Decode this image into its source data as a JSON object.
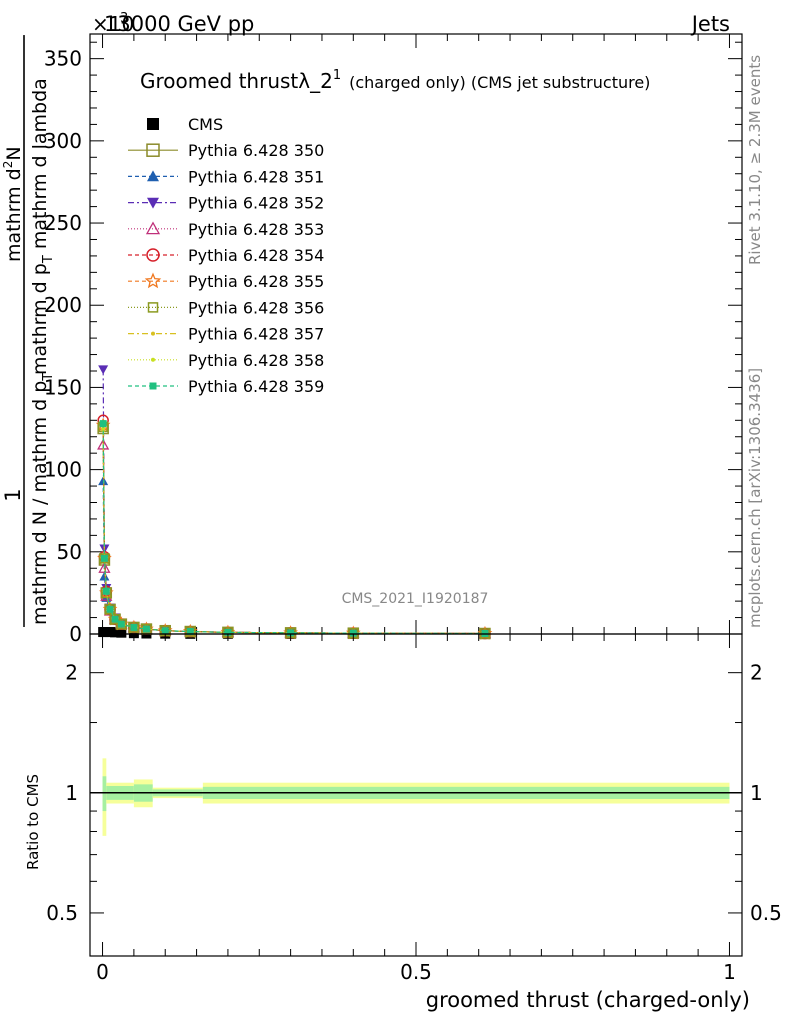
{
  "header": {
    "left": "13000 GeV pp",
    "right": "Jets",
    "multiplier": "×10",
    "multiplier_exp": "3"
  },
  "side_labels": {
    "rivet": "Rivet 3.1.10, ≥ 2.3M events",
    "mcplots": "mcplots.cern.ch [arXiv:1306.3436]"
  },
  "watermark": "CMS_2021_I1920187",
  "chart_data": [
    {
      "type": "line",
      "title": "Groomed thrustλ_2",
      "title_sup": "1",
      "title_suffix": "(charged only) (CMS jet substructure)",
      "ylabel_parts": [
        "1",
        "mathrm d N / mathrm d p",
        "T",
        "mathrm d N",
        "mathrm d p",
        "T",
        "mathrm d lambda"
      ],
      "ylabel_top": "mathrm d",
      "ylabel_top_sup": "2",
      "ylabel_top_end": "N",
      "ylabel_num": "1",
      "ylabel_den_left": "mathrm d N / mathrm d p",
      "ylabel_den_sub": "T",
      "ylabel_right_num": "mathrm d",
      "ylabel_right_num_sup": "2",
      "ylabel_right_num_end": "N",
      "ylabel_right_den": "mathrm d p",
      "ylabel_right_den_sub": "T",
      "ylabel_right_den_end": " mathrm d lambda",
      "xlim": [
        -0.02,
        1.02
      ],
      "ylim": [
        0,
        365
      ],
      "yticks": [
        0,
        50,
        100,
        150,
        200,
        250,
        300,
        350
      ],
      "ytick_labels": [
        "0",
        "50",
        "100",
        "150",
        "200",
        "250",
        "300",
        "350"
      ],
      "x": [
        0.001,
        0.003,
        0.006,
        0.012,
        0.02,
        0.03,
        0.05,
        0.07,
        0.1,
        0.14,
        0.2,
        0.3,
        0.4,
        0.61
      ],
      "series": [
        {
          "name": "CMS",
          "color": "#000000",
          "marker": "square-filled",
          "dash": "",
          "values": [
            1.2,
            1.2,
            1.2,
            1.2,
            1.0,
            0.8,
            0.5,
            0.3,
            0.2,
            0.1,
            0.1,
            0.05,
            0.03,
            0.01
          ]
        },
        {
          "name": "Pythia 6.428 350",
          "color": "#8b8b2a",
          "marker": "square-open",
          "dash": "",
          "values": [
            125,
            45,
            25,
            15,
            9,
            6,
            4,
            3,
            2,
            1.5,
            1,
            0.7,
            0.5,
            0.3
          ]
        },
        {
          "name": "Pythia 6.428 351",
          "color": "#1f5fb0",
          "marker": "triangle-filled",
          "dash": "4,3",
          "values": [
            93,
            35,
            22,
            14,
            9,
            6,
            4,
            3,
            2,
            1.5,
            1,
            0.7,
            0.5,
            0.3
          ]
        },
        {
          "name": "Pythia 6.428 352",
          "color": "#5a2db5",
          "marker": "triangle-down-filled",
          "dash": "6,3,2,3",
          "values": [
            161,
            52,
            28,
            16,
            10,
            6,
            4,
            3,
            2,
            1.5,
            1,
            0.7,
            0.5,
            0.3
          ]
        },
        {
          "name": "Pythia 6.428 353",
          "color": "#c0307a",
          "marker": "triangle-open",
          "dash": "1,2",
          "values": [
            115,
            40,
            23,
            14,
            9,
            6,
            4,
            3,
            2,
            1.5,
            1,
            0.7,
            0.5,
            0.3
          ]
        },
        {
          "name": "Pythia 6.428 354",
          "color": "#d6202a",
          "marker": "circle-open",
          "dash": "4,3",
          "values": [
            130,
            47,
            26,
            15,
            9,
            6,
            4,
            3,
            2,
            1.5,
            1,
            0.7,
            0.5,
            0.3
          ]
        },
        {
          "name": "Pythia 6.428 355",
          "color": "#f07820",
          "marker": "star-open",
          "dash": "4,3",
          "values": [
            127,
            46,
            25,
            15,
            9,
            6,
            4,
            3,
            2,
            1.5,
            1,
            0.7,
            0.5,
            0.3
          ]
        },
        {
          "name": "Pythia 6.428 356",
          "color": "#8b9a20",
          "marker": "square-open-small",
          "dash": "1,2",
          "values": [
            126,
            46,
            25,
            15,
            9,
            6,
            4,
            3,
            2,
            1.5,
            1,
            0.7,
            0.5,
            0.3
          ]
        },
        {
          "name": "Pythia 6.428 357",
          "color": "#d8c020",
          "marker": "dot",
          "dash": "6,3,2,3",
          "values": [
            124,
            45,
            25,
            15,
            9,
            6,
            4,
            3,
            2,
            1.5,
            1,
            0.7,
            0.5,
            0.3
          ]
        },
        {
          "name": "Pythia 6.428 358",
          "color": "#c8e020",
          "marker": "dot",
          "dash": "1,2",
          "values": [
            125,
            45,
            25,
            15,
            9,
            6,
            4,
            3,
            2,
            1.5,
            1,
            0.7,
            0.5,
            0.3
          ]
        },
        {
          "name": "Pythia 6.428 359",
          "color": "#20c080",
          "marker": "square-filled-small",
          "dash": "4,3",
          "values": [
            128,
            46,
            26,
            15,
            9,
            6,
            4,
            3,
            2,
            1.5,
            1,
            0.7,
            0.5,
            0.3
          ]
        }
      ]
    },
    {
      "type": "area",
      "ylabel": "Ratio to CMS",
      "xlabel": "groomed thrust (charged-only)",
      "xlim": [
        -0.02,
        1.02
      ],
      "ylim": [
        0.39,
        2.5
      ],
      "log_y": true,
      "yticks": [
        0.5,
        1,
        2
      ],
      "ytick_labels": [
        "0.5",
        "1",
        "2"
      ],
      "xticks": [
        0,
        0.5,
        1
      ],
      "xtick_labels": [
        "0",
        "0.5",
        "1"
      ],
      "reference": 1,
      "band_bins": [
        {
          "x0": 0.0,
          "x1": 0.006,
          "outer": 0.22,
          "inner": 0.1
        },
        {
          "x0": 0.006,
          "x1": 0.05,
          "outer": 0.06,
          "inner": 0.04
        },
        {
          "x0": 0.05,
          "x1": 0.08,
          "outer": 0.08,
          "inner": 0.05
        },
        {
          "x0": 0.08,
          "x1": 0.16,
          "outer": 0.03,
          "inner": 0.02
        },
        {
          "x0": 0.16,
          "x1": 1.0,
          "outer": 0.06,
          "inner": 0.035
        }
      ],
      "colors": {
        "outer": "#f6ff9a",
        "inner": "#a6f0a0"
      }
    }
  ]
}
